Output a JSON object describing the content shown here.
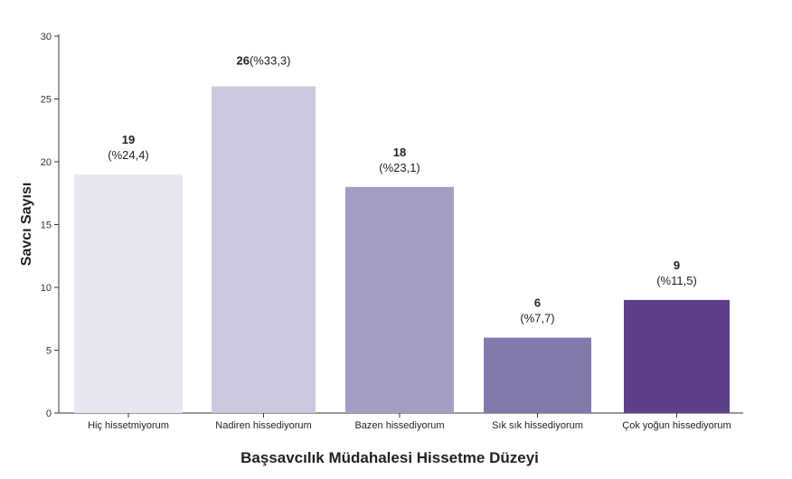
{
  "chart_data": {
    "type": "bar",
    "categories": [
      "Hiç hissetmiyorum",
      "Nadiren hissediyorum",
      "Bazen hissediyorum",
      "Sık sık hissediyorum",
      "Çok yoğun hissediyorum"
    ],
    "values": [
      19,
      26,
      18,
      6,
      9
    ],
    "percent_labels": [
      "(%24,4)",
      "(%33,3)",
      "(%23,1)",
      "(%7,7)",
      "(%11,5)"
    ],
    "value_labels": [
      "19",
      "26",
      "18",
      "6",
      "9"
    ],
    "colors": [
      "#e8e7f1",
      "#c9c8df",
      "#a29fc3",
      "#807aad",
      "#5d3f8a"
    ],
    "xlabel": "Başsavcılık Müdahalesi Hissetme Düzeyi",
    "ylabel": "Savcı Sayısı",
    "ylim": [
      0,
      30
    ],
    "yticks": [
      0,
      5,
      10,
      15,
      20,
      25,
      30
    ],
    "grid": false,
    "label_layout": [
      "stacked",
      "inline",
      "stacked",
      "stacked",
      "stacked"
    ]
  }
}
